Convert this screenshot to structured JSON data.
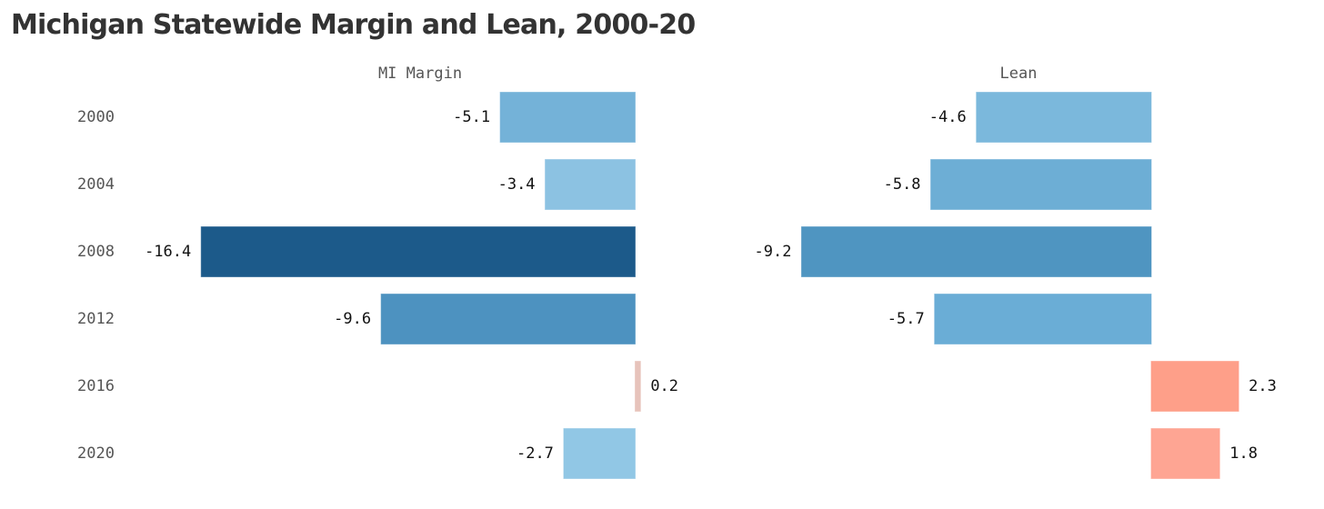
{
  "title": "Michigan Statewide Margin and Lean, 2000-20",
  "chart_data": {
    "type": "bar",
    "orientation": "horizontal",
    "title": "Michigan Statewide Margin and Lean, 2000-20",
    "categories": [
      "2000",
      "2004",
      "2008",
      "2012",
      "2016",
      "2020"
    ],
    "series": [
      {
        "name": "MI Margin",
        "values": [
          -5.1,
          -3.4,
          -16.4,
          -9.6,
          0.2,
          -2.7
        ],
        "labels": [
          "-5.1",
          "-3.4",
          "-16.4",
          "-9.6",
          "0.2",
          "-2.7"
        ],
        "colors": [
          "#74b2d8",
          "#8cc2e2",
          "#1c5a8a",
          "#4d92c0",
          "#e7c3bb",
          "#91c7e5"
        ]
      },
      {
        "name": "Lean",
        "values": [
          -4.6,
          -5.8,
          -9.2,
          -5.7,
          2.3,
          1.8
        ],
        "labels": [
          "-4.6",
          "-5.8",
          "-9.2",
          "-5.7",
          "2.3",
          "1.8"
        ],
        "colors": [
          "#7bb8dc",
          "#6daed5",
          "#4f95c1",
          "#6aadd6",
          "#fe9f89",
          "#fea593"
        ]
      }
    ],
    "grid": false,
    "legend": "none"
  }
}
